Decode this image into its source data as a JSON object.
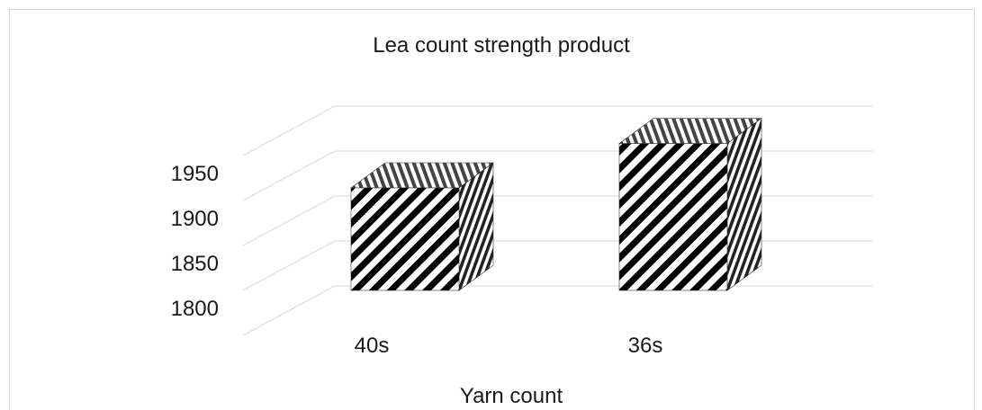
{
  "chart_data": {
    "type": "bar",
    "title": "Lea count strength product",
    "xlabel": "Yarn count",
    "ylabel": "",
    "categories": [
      "40s",
      "36s"
    ],
    "values": [
      1880,
      1927
    ],
    "ylim": [
      1800,
      1950
    ],
    "yticks": [
      "1800",
      "1850",
      "1900",
      "1950"
    ],
    "grid": true,
    "legend": "none",
    "style": "3d-column",
    "colors": {
      "bar_stroke": "#000000",
      "hatch": "#000000",
      "background": "#ffffff",
      "grid": "#d9d9d9"
    }
  }
}
